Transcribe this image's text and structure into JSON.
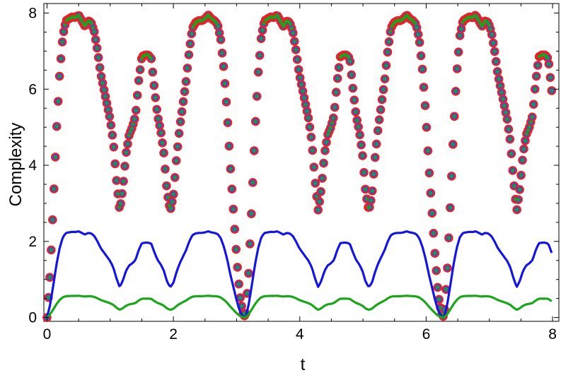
{
  "chart_data": {
    "type": "line",
    "title": "",
    "xlabel": "t",
    "ylabel": "Complexity",
    "xlim": [
      -0.05,
      8.1
    ],
    "ylim": [
      -0.1,
      8.25
    ],
    "x_ticks": [
      0,
      2,
      4,
      6,
      8
    ],
    "y_ticks": [
      0,
      2,
      4,
      6,
      8
    ],
    "x_tick_labels": [
      "0",
      "2",
      "4",
      "6",
      "8"
    ],
    "y_tick_labels": [
      "0",
      "2",
      "4",
      "6",
      "8"
    ],
    "grid": false,
    "legend": "none",
    "period": 3.1416,
    "base_profile": {
      "t": [
        0,
        0.05,
        0.1,
        0.15,
        0.2,
        0.25,
        0.3,
        0.35,
        0.4,
        0.45,
        0.5,
        0.55,
        0.6,
        0.65,
        0.7,
        0.75,
        0.8,
        0.85,
        0.9,
        0.95,
        1.0,
        1.05,
        1.1,
        1.15,
        1.2,
        1.25,
        1.3,
        1.35,
        1.4,
        1.45,
        1.5,
        1.55,
        1.6,
        1.65,
        1.7,
        1.75,
        1.8,
        1.85,
        1.9,
        1.95,
        2.0,
        2.05,
        2.1,
        2.15,
        2.2,
        2.25,
        2.3,
        2.35,
        2.4,
        2.45,
        2.5,
        2.55,
        2.6,
        2.65,
        2.7,
        2.75,
        2.8,
        2.85,
        2.9,
        2.95,
        3.0,
        3.05,
        3.1,
        3.1416
      ],
      "values": [
        0.0,
        1.2,
        3.0,
        4.9,
        6.4,
        7.4,
        7.8,
        7.85,
        7.9,
        7.88,
        7.95,
        7.8,
        7.65,
        7.8,
        7.75,
        7.5,
        7.0,
        6.4,
        6.0,
        5.6,
        5.2,
        4.6,
        3.6,
        2.8,
        3.4,
        4.3,
        4.8,
        5.0,
        5.3,
        6.2,
        6.85,
        6.9,
        6.9,
        6.8,
        6.0,
        5.3,
        4.9,
        4.3,
        3.3,
        2.8,
        3.2,
        4.2,
        5.0,
        5.6,
        6.2,
        7.0,
        7.6,
        7.75,
        7.8,
        7.8,
        7.85,
        7.95,
        7.85,
        7.8,
        7.7,
        7.3,
        6.5,
        5.4,
        4.0,
        2.8,
        1.6,
        0.6,
        0.1,
        0.0
      ]
    },
    "series": [
      {
        "name": "",
        "style": "circle-markers",
        "color": "#e8202a",
        "fill": "#3a52c8",
        "scale": 1.0,
        "offset": 0
      },
      {
        "name": "",
        "style": "diamond-markers",
        "color": "#1aa51a",
        "fill": "#1aa51a",
        "scale": 1.0,
        "offset": 0
      },
      {
        "name": "",
        "style": "line",
        "color": "#1515e0",
        "scale": 0.285,
        "offset": 0
      },
      {
        "name": "",
        "style": "line",
        "color": "#1aa51a",
        "scale": 0.072,
        "offset": 0
      }
    ]
  }
}
